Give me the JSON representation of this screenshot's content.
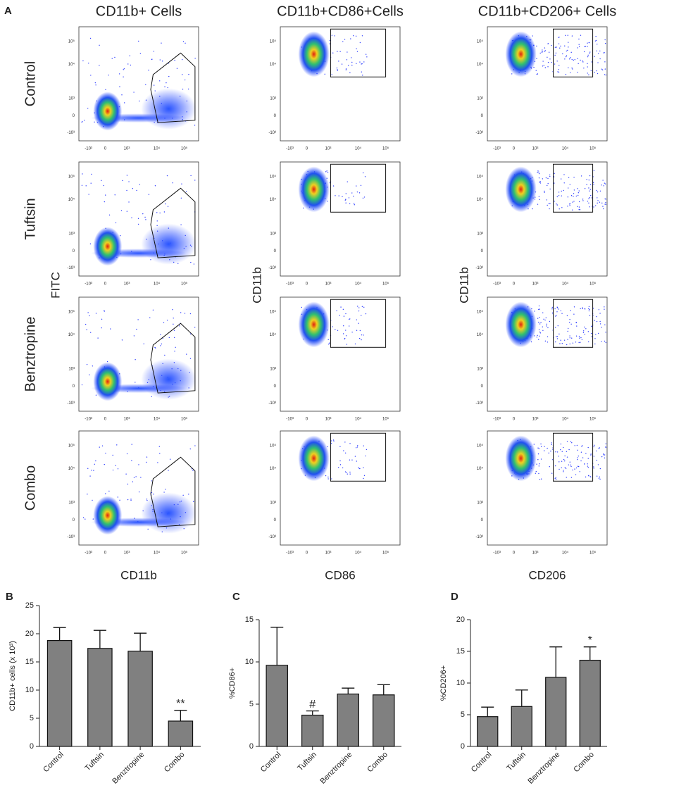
{
  "flow_panel": {
    "label": "A",
    "column_titles": [
      "CD11b+ Cells",
      "CD11b+CD86+Cells",
      "CD11b+CD206+ Cells"
    ],
    "row_labels": [
      "Control",
      "Tuftsin",
      "Benztropine",
      "Combo"
    ],
    "y_axis_labels": [
      "FITC",
      "CD11b",
      "CD11b"
    ],
    "x_axis_labels": [
      "CD11b",
      "CD86",
      "CD206"
    ],
    "y_tick_labels": [
      "10⁵",
      "10⁴",
      "10³",
      "0",
      "-10³"
    ],
    "x_tick_labels": [
      "-10³",
      "0",
      "10³",
      "10⁴",
      "10⁵"
    ]
  },
  "chart_data": [
    {
      "type": "bar",
      "label": "B",
      "y_label": "CD11b+ cells (x 10³)",
      "categories": [
        "Control",
        "Tuftsin",
        "Benztropine",
        "Combo"
      ],
      "values": [
        18.8,
        17.4,
        16.9,
        4.5
      ],
      "errors": [
        2.3,
        3.2,
        3.2,
        1.9
      ],
      "annotations": [
        null,
        null,
        null,
        "**"
      ],
      "color": "#808080",
      "ylim": [
        0,
        25
      ],
      "yticks": [
        0,
        5,
        10,
        15,
        20,
        25
      ]
    },
    {
      "type": "bar",
      "label": "C",
      "y_label": "%CD86+",
      "categories": [
        "Control",
        "Tuftsin",
        "Benztropine",
        "Combo"
      ],
      "values": [
        9.6,
        3.7,
        6.2,
        6.1
      ],
      "errors": [
        4.5,
        0.5,
        0.7,
        1.2
      ],
      "annotations": [
        null,
        "#",
        null,
        null
      ],
      "color": "#808080",
      "ylim": [
        0,
        15
      ],
      "yticks": [
        0,
        5,
        10,
        15
      ]
    },
    {
      "type": "bar",
      "label": "D",
      "y_label": "%CD206+",
      "categories": [
        "Control",
        "Tuftsin",
        "Benztropine",
        "Combo"
      ],
      "values": [
        4.7,
        6.3,
        10.9,
        13.6
      ],
      "errors": [
        1.5,
        2.6,
        4.8,
        2.1
      ],
      "annotations": [
        null,
        null,
        null,
        "*"
      ],
      "color": "#808080",
      "ylim": [
        0,
        20
      ],
      "yticks": [
        0,
        5,
        10,
        15,
        20
      ]
    }
  ]
}
